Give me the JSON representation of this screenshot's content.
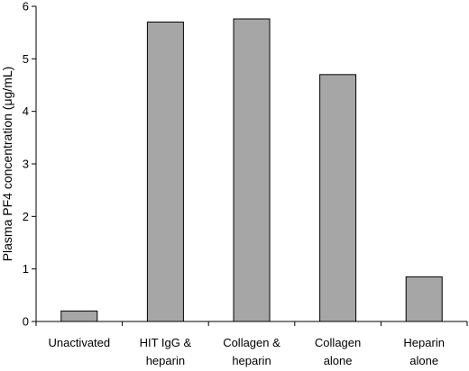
{
  "chart_data": {
    "type": "bar",
    "title": "",
    "xlabel": "",
    "ylabel": "Plasma PF4 concentration (μg/mL)",
    "ylim": [
      0,
      6
    ],
    "y_ticks": [
      0,
      1,
      2,
      3,
      4,
      5,
      6
    ],
    "grid": false,
    "legend": "none",
    "categories": [
      [
        "Unactivated"
      ],
      [
        "HIT IgG &",
        "heparin"
      ],
      [
        "Collagen &",
        "heparin"
      ],
      [
        "Collagen",
        "alone"
      ],
      [
        "Heparin",
        "alone"
      ]
    ],
    "values": [
      0.2,
      5.7,
      5.76,
      4.7,
      0.85
    ],
    "colors": {
      "bar_fill": "#a6a6a6",
      "bar_stroke": "#000000",
      "axis": "#000000"
    }
  }
}
